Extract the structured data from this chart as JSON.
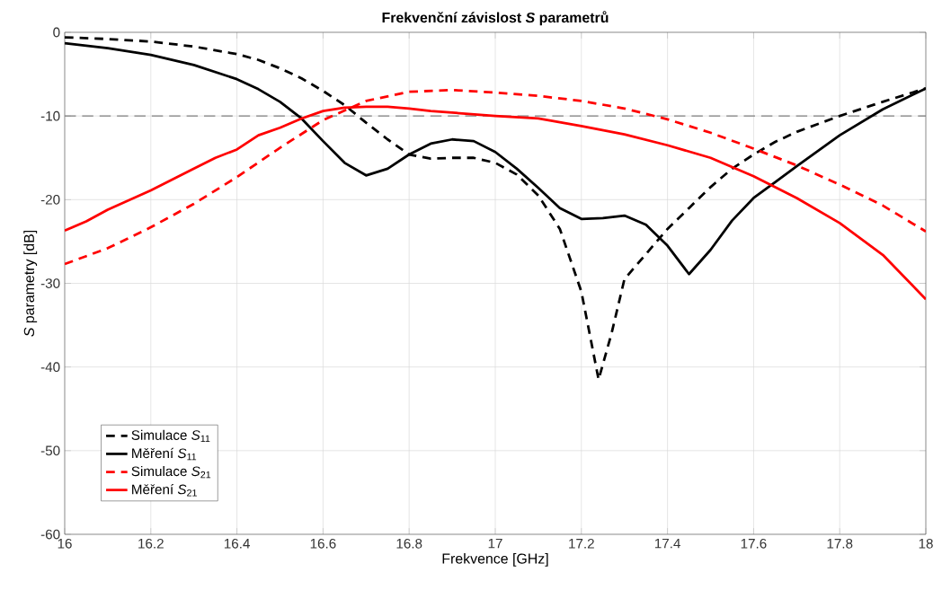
{
  "chart_data": {
    "type": "line",
    "title": "Frekvenční závislost *S* parametrů",
    "xlabel": "Frekvence [GHz]",
    "ylabel": "*S* parametry [dB]",
    "xlim": [
      16,
      18
    ],
    "ylim": [
      -60,
      0
    ],
    "xticks": [
      16,
      16.2,
      16.4,
      16.6,
      16.8,
      17,
      17.2,
      17.4,
      17.6,
      17.8,
      18
    ],
    "yticks": [
      -60,
      -50,
      -40,
      -30,
      -20,
      -10,
      0
    ],
    "grid": true,
    "legend": "bottom left",
    "ref_lines": [
      {
        "axis": "y",
        "value": -10,
        "color": "#808080",
        "line_style": "dashed"
      }
    ],
    "series": [
      {
        "name": "Simulace *S*$_{11}$",
        "color": "#000000",
        "line_style": "dashed",
        "x": [
          16.0,
          16.1,
          16.2,
          16.3,
          16.4,
          16.45,
          16.5,
          16.55,
          16.6,
          16.65,
          16.7,
          16.75,
          16.8,
          16.85,
          16.9,
          16.95,
          17.0,
          17.05,
          17.1,
          17.15,
          17.2,
          17.24,
          17.27,
          17.3,
          17.35,
          17.4,
          17.45,
          17.5,
          17.55,
          17.6,
          17.65,
          17.7,
          17.8,
          17.9,
          18.0
        ],
        "values": [
          -0.6,
          -0.8,
          -1.1,
          -1.7,
          -2.6,
          -3.3,
          -4.3,
          -5.5,
          -7.0,
          -8.7,
          -10.8,
          -12.8,
          -14.6,
          -15.1,
          -15.0,
          -15.0,
          -15.6,
          -17.0,
          -19.5,
          -23.5,
          -31,
          -41.5,
          -36,
          -29.5,
          -26.5,
          -23.5,
          -21.0,
          -18.5,
          -16.3,
          -14.6,
          -13.1,
          -11.9,
          -10.0,
          -8.3,
          -6.7
        ]
      },
      {
        "name": "Měření *S*$_{11}$",
        "color": "#000000",
        "line_style": "solid",
        "x": [
          16.0,
          16.1,
          16.2,
          16.3,
          16.4,
          16.45,
          16.5,
          16.55,
          16.6,
          16.65,
          16.7,
          16.75,
          16.8,
          16.85,
          16.9,
          16.95,
          17.0,
          17.05,
          17.1,
          17.15,
          17.2,
          17.25,
          17.3,
          17.35,
          17.4,
          17.45,
          17.5,
          17.55,
          17.6,
          17.65,
          17.7,
          17.8,
          17.9,
          18.0
        ],
        "values": [
          -1.3,
          -1.9,
          -2.7,
          -3.9,
          -5.6,
          -6.8,
          -8.3,
          -10.3,
          -13.0,
          -15.6,
          -17.1,
          -16.3,
          -14.6,
          -13.3,
          -12.8,
          -13.0,
          -14.3,
          -16.3,
          -18.6,
          -21.0,
          -22.3,
          -22.2,
          -21.9,
          -23.0,
          -25.5,
          -28.9,
          -26.0,
          -22.5,
          -19.8,
          -17.9,
          -16.0,
          -12.3,
          -9.2,
          -6.7
        ]
      },
      {
        "name": "Simulace *S*$_{21}$",
        "color": "#ff0000",
        "line_style": "dashed",
        "x": [
          16.0,
          16.1,
          16.2,
          16.3,
          16.4,
          16.5,
          16.6,
          16.7,
          16.8,
          16.9,
          17.0,
          17.1,
          17.2,
          17.3,
          17.4,
          17.5,
          17.6,
          17.7,
          17.8,
          17.9,
          18.0
        ],
        "values": [
          -27.7,
          -25.8,
          -23.3,
          -20.5,
          -17.3,
          -13.8,
          -10.5,
          -8.2,
          -7.1,
          -6.9,
          -7.2,
          -7.6,
          -8.2,
          -9.1,
          -10.4,
          -12.0,
          -13.9,
          -15.9,
          -18.2,
          -20.7,
          -23.8
        ]
      },
      {
        "name": "Měření *S*$_{21}$",
        "color": "#ff0000",
        "line_style": "solid",
        "x": [
          16.0,
          16.05,
          16.1,
          16.2,
          16.3,
          16.35,
          16.4,
          16.45,
          16.5,
          16.55,
          16.6,
          16.65,
          16.7,
          16.75,
          16.8,
          16.85,
          16.9,
          17.0,
          17.1,
          17.2,
          17.3,
          17.4,
          17.5,
          17.6,
          17.7,
          17.8,
          17.9,
          18.0
        ],
        "values": [
          -23.7,
          -22.6,
          -21.2,
          -18.9,
          -16.3,
          -15.0,
          -14.0,
          -12.3,
          -11.4,
          -10.3,
          -9.4,
          -9.0,
          -8.9,
          -8.9,
          -9.1,
          -9.4,
          -9.6,
          -10.0,
          -10.3,
          -11.2,
          -12.2,
          -13.5,
          -15.0,
          -17.2,
          -19.8,
          -22.8,
          -26.6,
          -31.9
        ]
      }
    ]
  }
}
